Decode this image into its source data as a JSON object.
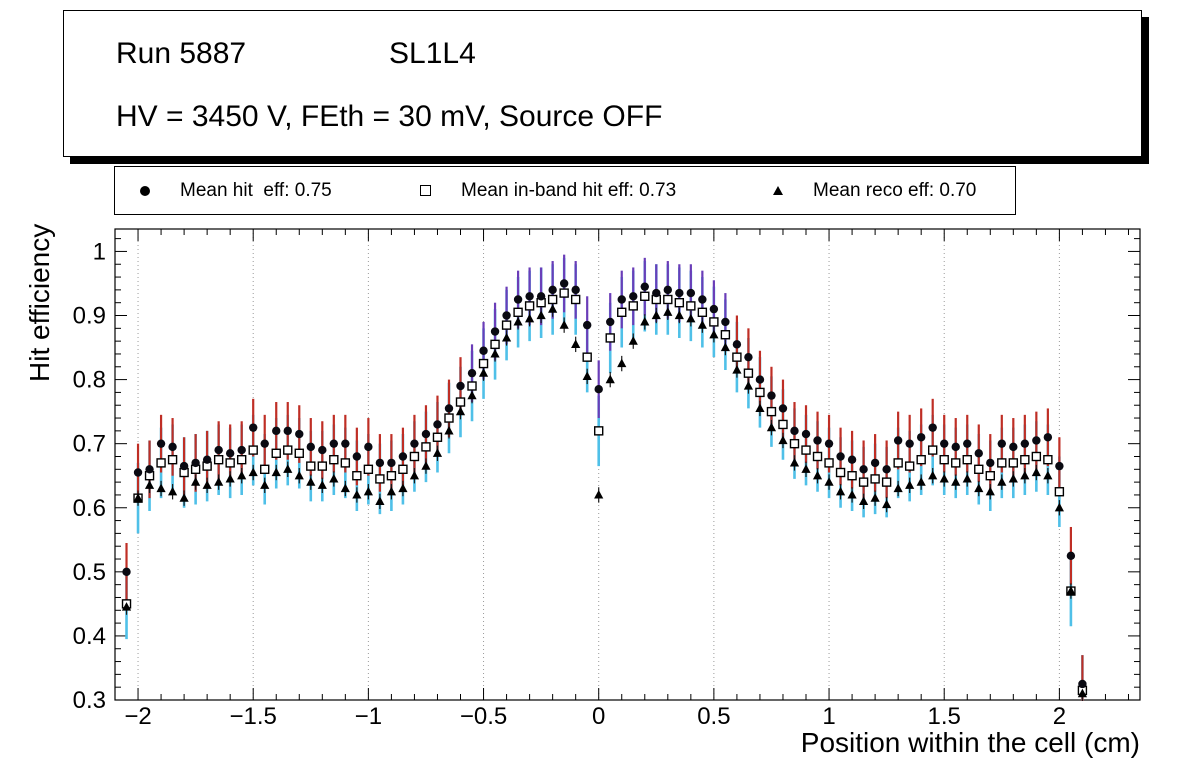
{
  "title_box": {
    "run": "Run 5887",
    "station": "SL1L4",
    "conditions": "HV = 3450 V, FEth = 30 mV, Source OFF"
  },
  "legend": {
    "entries": [
      {
        "marker": "filled-circle",
        "label": "Mean hit  eff: 0.75"
      },
      {
        "marker": "open-square",
        "label": "Mean in-band hit eff: 0.73"
      },
      {
        "marker": "filled-triangle",
        "label": "Mean reco eff: 0.70"
      }
    ]
  },
  "axes": {
    "x_label": "Position within the cell (cm)",
    "y_label": "Hit efficiency",
    "xlim": [
      -2.1,
      2.35
    ],
    "ylim": [
      0.3,
      1.035
    ],
    "x_ticks": [
      -2,
      -1.5,
      -1,
      -0.5,
      0,
      0.5,
      1,
      1.5,
      2
    ],
    "x_tick_labels": [
      "−2",
      "−1.5",
      "−1",
      "−0.5",
      "0",
      "0.5",
      "1",
      "1.5",
      "2"
    ],
    "x_minor_step": 0.1,
    "y_ticks": [
      0.3,
      0.4,
      0.5,
      0.6,
      0.7,
      0.8,
      0.9,
      1
    ],
    "y_tick_labels": [
      "0.3",
      "0.4",
      "0.5",
      "0.6",
      "0.7",
      "0.8",
      "0.9",
      "1"
    ],
    "y_minor_step": 0.02,
    "grid": {
      "vertical": true,
      "color": "#9a9a9a",
      "dash": "1 3"
    }
  },
  "chart_data": {
    "type": "scatter",
    "title": "Run 5887 SL1L4 — HV = 3450 V, FEth = 30 mV, Source OFF",
    "xlabel": "Position within the cell (cm)",
    "ylabel": "Hit efficiency",
    "xlim": [
      -2.1,
      2.35
    ],
    "ylim": [
      0.3,
      1.035
    ],
    "x": [
      -2.05,
      -2.0,
      -1.95,
      -1.9,
      -1.85,
      -1.8,
      -1.75,
      -1.7,
      -1.65,
      -1.6,
      -1.55,
      -1.5,
      -1.45,
      -1.4,
      -1.35,
      -1.3,
      -1.25,
      -1.2,
      -1.15,
      -1.1,
      -1.05,
      -1.0,
      -0.95,
      -0.9,
      -0.85,
      -0.8,
      -0.75,
      -0.7,
      -0.65,
      -0.6,
      -0.55,
      -0.5,
      -0.45,
      -0.4,
      -0.35,
      -0.3,
      -0.25,
      -0.2,
      -0.15,
      -0.1,
      -0.05,
      0.0,
      0.05,
      0.1,
      0.15,
      0.2,
      0.25,
      0.3,
      0.35,
      0.4,
      0.45,
      0.5,
      0.55,
      0.6,
      0.65,
      0.7,
      0.75,
      0.8,
      0.85,
      0.9,
      0.95,
      1.0,
      1.05,
      1.1,
      1.15,
      1.2,
      1.25,
      1.3,
      1.35,
      1.4,
      1.45,
      1.5,
      1.55,
      1.6,
      1.65,
      1.7,
      1.75,
      1.8,
      1.85,
      1.9,
      1.95,
      2.0,
      2.05,
      2.1
    ],
    "series": [
      {
        "name": "Mean hit eff",
        "mean": 0.75,
        "marker": "filled-circle",
        "marker_color": "#0a0a12",
        "error": 0.045,
        "error_color": "#bf2e25",
        "error_color_peak": "#6a3db8",
        "peak_region": [
          -0.55,
          0.55
        ],
        "values": [
          0.5,
          0.655,
          0.66,
          0.7,
          0.695,
          0.665,
          0.67,
          0.675,
          0.69,
          0.685,
          0.69,
          0.725,
          0.7,
          0.72,
          0.72,
          0.715,
          0.695,
          0.69,
          0.7,
          0.7,
          0.68,
          0.695,
          0.67,
          0.67,
          0.68,
          0.7,
          0.715,
          0.73,
          0.755,
          0.79,
          0.81,
          0.845,
          0.875,
          0.9,
          0.925,
          0.93,
          0.93,
          0.94,
          0.95,
          0.94,
          0.885,
          0.785,
          0.89,
          0.925,
          0.93,
          0.945,
          0.935,
          0.94,
          0.935,
          0.935,
          0.925,
          0.91,
          0.89,
          0.855,
          0.835,
          0.8,
          0.775,
          0.755,
          0.72,
          0.715,
          0.705,
          0.7,
          0.68,
          0.675,
          0.66,
          0.67,
          0.66,
          0.705,
          0.7,
          0.71,
          0.725,
          0.7,
          0.695,
          0.7,
          0.685,
          0.67,
          0.7,
          0.695,
          0.7,
          0.705,
          0.71,
          0.665,
          0.525,
          0.325
        ]
      },
      {
        "name": "Mean in-band hit eff",
        "mean": 0.73,
        "marker": "open-square",
        "marker_color": "#000000",
        "error": 0.055,
        "error_color": "#4fc0e8",
        "values": [
          0.45,
          0.615,
          0.65,
          0.67,
          0.675,
          0.655,
          0.66,
          0.665,
          0.675,
          0.67,
          0.675,
          0.69,
          0.66,
          0.685,
          0.69,
          0.685,
          0.665,
          0.665,
          0.675,
          0.67,
          0.65,
          0.66,
          0.645,
          0.65,
          0.66,
          0.68,
          0.695,
          0.71,
          0.74,
          0.765,
          0.79,
          0.825,
          0.855,
          0.885,
          0.905,
          0.915,
          0.92,
          0.925,
          0.935,
          0.925,
          0.835,
          0.72,
          0.865,
          0.905,
          0.915,
          0.93,
          0.925,
          0.925,
          0.92,
          0.915,
          0.905,
          0.89,
          0.87,
          0.835,
          0.81,
          0.78,
          0.75,
          0.73,
          0.7,
          0.69,
          0.68,
          0.67,
          0.655,
          0.65,
          0.64,
          0.645,
          0.64,
          0.67,
          0.665,
          0.675,
          0.69,
          0.675,
          0.67,
          0.675,
          0.66,
          0.65,
          0.67,
          0.67,
          0.675,
          0.68,
          0.675,
          0.625,
          0.47,
          0.315
        ]
      },
      {
        "name": "Mean reco eff",
        "mean": 0.7,
        "marker": "filled-triangle",
        "marker_color": "#000000",
        "error": 0.012,
        "error_color": "#1a1a1a",
        "values": [
          0.445,
          0.615,
          0.635,
          0.63,
          0.625,
          0.615,
          0.64,
          0.635,
          0.64,
          0.645,
          0.65,
          0.655,
          0.635,
          0.655,
          0.66,
          0.65,
          0.64,
          0.635,
          0.645,
          0.63,
          0.62,
          0.625,
          0.61,
          0.625,
          0.63,
          0.65,
          0.665,
          0.685,
          0.72,
          0.75,
          0.775,
          0.81,
          0.84,
          0.865,
          0.89,
          0.895,
          0.9,
          0.91,
          0.885,
          0.855,
          0.805,
          0.62,
          0.8,
          0.825,
          0.86,
          0.89,
          0.9,
          0.905,
          0.9,
          0.895,
          0.885,
          0.87,
          0.85,
          0.815,
          0.79,
          0.755,
          0.725,
          0.705,
          0.67,
          0.66,
          0.65,
          0.64,
          0.625,
          0.62,
          0.61,
          0.615,
          0.605,
          0.63,
          0.635,
          0.64,
          0.65,
          0.645,
          0.64,
          0.645,
          0.63,
          0.625,
          0.64,
          0.645,
          0.65,
          0.655,
          0.65,
          0.6,
          0.47,
          0.31
        ]
      }
    ]
  }
}
